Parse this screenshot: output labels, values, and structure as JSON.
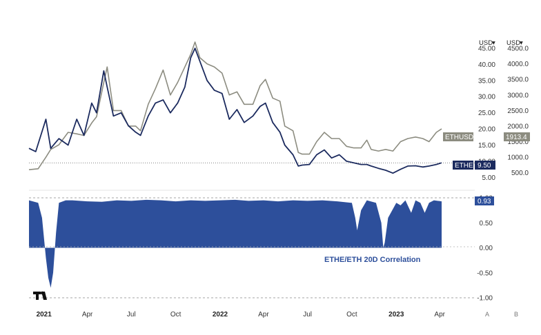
{
  "colors": {
    "ethe_line": "#1b2a5e",
    "ethusd_line": "#8c8c80",
    "corr_fill": "#2d4f9b",
    "ethe_badge": "#1b2a5e",
    "ethusd_badge": "#8c8c80",
    "corr_badge": "#2d4f9b"
  },
  "chart_data": [
    {
      "type": "line",
      "x_range": [
        "2020-12-01",
        "2023-04-05"
      ],
      "x_ticks": [
        {
          "date": "2021-01-01",
          "label": "2021",
          "bold": true
        },
        {
          "date": "2021-04-01",
          "label": "Apr",
          "bold": false
        },
        {
          "date": "2021-07-01",
          "label": "Jul",
          "bold": false
        },
        {
          "date": "2021-10-01",
          "label": "Oct",
          "bold": false
        },
        {
          "date": "2022-01-01",
          "label": "2022",
          "bold": true
        },
        {
          "date": "2022-04-01",
          "label": "Apr",
          "bold": false
        },
        {
          "date": "2022-07-01",
          "label": "Jul",
          "bold": false
        },
        {
          "date": "2022-10-01",
          "label": "Oct",
          "bold": false
        },
        {
          "date": "2023-01-01",
          "label": "2023",
          "bold": true
        },
        {
          "date": "2023-04-01",
          "label": "Apr",
          "bold": false
        }
      ],
      "axes": [
        {
          "side": "right-inner",
          "unit": "USD",
          "ylim": [
            4.0,
            45.0
          ],
          "ticks": [
            "45.00",
            "40.00",
            "35.00",
            "30.00",
            "25.00",
            "20.00",
            "15.00",
            "10.00",
            "5.00"
          ]
        },
        {
          "side": "right-outer",
          "unit": "USD",
          "ylim": [
            250,
            4500
          ],
          "ticks": [
            "4500.0",
            "4000.0",
            "3500.0",
            "3000.0",
            "2500.0",
            "2000.0",
            "1500.0",
            "1000.0",
            "500.0"
          ]
        }
      ],
      "series": [
        {
          "name": "ETHE",
          "axis": 0,
          "last_value": "9.50",
          "x": [
            "2020-12-01",
            "2020-12-15",
            "2021-01-05",
            "2021-01-15",
            "2021-02-01",
            "2021-02-20",
            "2021-03-10",
            "2021-03-25",
            "2021-04-10",
            "2021-04-20",
            "2021-05-05",
            "2021-05-12",
            "2021-05-25",
            "2021-06-10",
            "2021-06-25",
            "2021-07-10",
            "2021-07-20",
            "2021-08-05",
            "2021-08-20",
            "2021-09-05",
            "2021-09-20",
            "2021-10-05",
            "2021-10-20",
            "2021-11-01",
            "2021-11-10",
            "2021-11-20",
            "2021-12-05",
            "2021-12-20",
            "2022-01-05",
            "2022-01-20",
            "2022-02-05",
            "2022-02-20",
            "2022-03-10",
            "2022-03-25",
            "2022-04-05",
            "2022-04-20",
            "2022-05-05",
            "2022-05-15",
            "2022-06-01",
            "2022-06-12",
            "2022-06-20",
            "2022-07-05",
            "2022-07-20",
            "2022-08-05",
            "2022-08-20",
            "2022-09-05",
            "2022-09-20",
            "2022-10-05",
            "2022-10-20",
            "2022-11-01",
            "2022-11-10",
            "2022-11-25",
            "2022-12-10",
            "2022-12-25",
            "2023-01-10",
            "2023-01-25",
            "2023-02-10",
            "2023-02-25",
            "2023-03-10",
            "2023-03-25",
            "2023-04-05"
          ],
          "y": [
            14,
            13,
            23,
            14,
            17,
            15,
            23,
            18,
            28,
            25,
            38,
            33,
            24,
            25,
            21,
            19,
            18,
            24,
            28,
            29,
            25,
            28,
            33,
            42,
            45,
            41,
            35,
            32,
            31,
            23,
            26,
            22,
            24,
            27,
            28,
            22,
            19,
            15,
            12,
            8.5,
            8.8,
            9,
            12,
            13.5,
            11,
            12,
            10,
            9.5,
            9,
            9,
            8.5,
            7.8,
            7.2,
            6.3,
            7.5,
            8.5,
            8.6,
            8.2,
            8.5,
            9,
            9.5
          ]
        },
        {
          "name": "ETHUSD",
          "axis": 1,
          "last_value": "1913.4",
          "x": [
            "2020-12-01",
            "2020-12-20",
            "2021-01-05",
            "2021-01-15",
            "2021-02-01",
            "2021-02-20",
            "2021-03-10",
            "2021-03-25",
            "2021-04-10",
            "2021-04-20",
            "2021-05-05",
            "2021-05-12",
            "2021-05-25",
            "2021-06-10",
            "2021-06-25",
            "2021-07-10",
            "2021-07-20",
            "2021-08-05",
            "2021-08-20",
            "2021-09-05",
            "2021-09-20",
            "2021-10-05",
            "2021-10-20",
            "2021-11-01",
            "2021-11-10",
            "2021-11-20",
            "2021-12-05",
            "2021-12-20",
            "2022-01-05",
            "2022-01-20",
            "2022-02-05",
            "2022-02-20",
            "2022-03-10",
            "2022-03-25",
            "2022-04-05",
            "2022-04-20",
            "2022-05-05",
            "2022-05-15",
            "2022-06-01",
            "2022-06-12",
            "2022-06-20",
            "2022-07-05",
            "2022-07-20",
            "2022-08-05",
            "2022-08-20",
            "2022-09-05",
            "2022-09-20",
            "2022-10-05",
            "2022-10-20",
            "2022-11-01",
            "2022-11-10",
            "2022-11-25",
            "2022-12-10",
            "2022-12-25",
            "2023-01-10",
            "2023-01-25",
            "2023-02-10",
            "2023-02-25",
            "2023-03-10",
            "2023-03-25",
            "2023-04-05"
          ],
          "y": [
            600,
            630,
            1000,
            1250,
            1400,
            1800,
            1750,
            1700,
            2100,
            2300,
            3400,
            3900,
            2500,
            2500,
            2000,
            2000,
            1850,
            2700,
            3200,
            3800,
            3000,
            3400,
            3900,
            4300,
            4700,
            4200,
            4000,
            3900,
            3700,
            3000,
            3100,
            2700,
            2700,
            3300,
            3500,
            2900,
            2800,
            2000,
            1850,
            1150,
            1100,
            1100,
            1500,
            1800,
            1600,
            1600,
            1350,
            1300,
            1300,
            1550,
            1250,
            1200,
            1250,
            1200,
            1500,
            1600,
            1650,
            1600,
            1500,
            1800,
            1913.4
          ]
        }
      ]
    },
    {
      "type": "area",
      "x_range": [
        "2020-12-01",
        "2023-04-05"
      ],
      "ylim": [
        -1.0,
        1.0
      ],
      "ticks": [
        "1.00",
        "0.50",
        "0.00",
        "-0.50",
        "-1.00"
      ],
      "series": [
        {
          "name": "ETHE/ETH 20D Correlation",
          "last_value": "0.93",
          "x": [
            "2020-12-01",
            "2020-12-20",
            "2020-12-28",
            "2021-01-05",
            "2021-01-10",
            "2021-01-15",
            "2021-01-20",
            "2021-01-26",
            "2021-02-01",
            "2021-02-15",
            "2021-03-01",
            "2021-04-01",
            "2021-05-01",
            "2021-06-01",
            "2021-07-01",
            "2021-08-01",
            "2021-09-01",
            "2021-10-01",
            "2021-11-01",
            "2021-12-01",
            "2022-01-01",
            "2022-02-01",
            "2022-03-01",
            "2022-04-01",
            "2022-05-01",
            "2022-06-01",
            "2022-07-01",
            "2022-08-01",
            "2022-09-01",
            "2022-10-01",
            "2022-10-08",
            "2022-10-12",
            "2022-10-20",
            "2022-11-01",
            "2022-11-20",
            "2022-12-01",
            "2022-12-05",
            "2022-12-08",
            "2022-12-15",
            "2023-01-01",
            "2023-01-10",
            "2023-01-20",
            "2023-02-01",
            "2023-02-10",
            "2023-02-20",
            "2023-03-01",
            "2023-03-10",
            "2023-03-20",
            "2023-04-05"
          ],
          "y": [
            0.95,
            0.9,
            0.6,
            -0.2,
            -0.6,
            -0.8,
            -0.5,
            0.3,
            0.9,
            0.95,
            0.95,
            0.93,
            0.92,
            0.95,
            0.94,
            0.96,
            0.95,
            0.93,
            0.95,
            0.94,
            0.95,
            0.96,
            0.94,
            0.95,
            0.93,
            0.95,
            0.94,
            0.95,
            0.93,
            0.9,
            0.6,
            0.35,
            0.75,
            0.95,
            0.9,
            0.5,
            0.0,
            0.1,
            0.6,
            0.9,
            0.85,
            0.95,
            0.7,
            0.95,
            0.9,
            0.7,
            0.9,
            0.95,
            0.93
          ]
        }
      ]
    }
  ],
  "buttons": {
    "a": "A",
    "b": "B"
  }
}
